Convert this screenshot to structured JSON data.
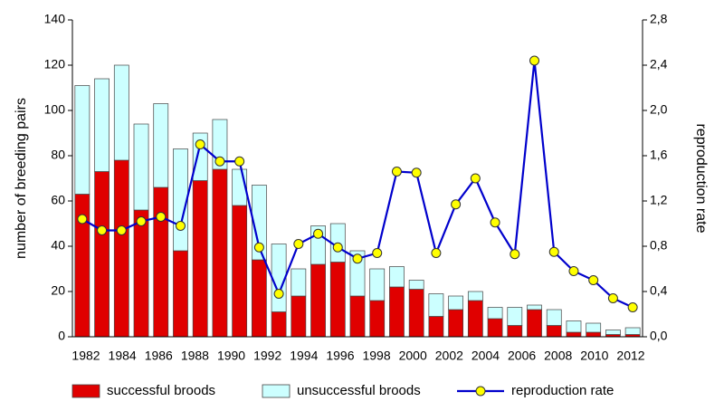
{
  "chart_data": {
    "type": "bar",
    "ylabel": "number of breeding pairs",
    "y2label": "reproduction rate",
    "xlabels": [
      "1982",
      "1984",
      "1986",
      "1988",
      "1990",
      "1992",
      "1994",
      "1996",
      "1998",
      "2000",
      "2002",
      "2004",
      "2006",
      "2008",
      "2010",
      "2012"
    ],
    "ylim": [
      0,
      140
    ],
    "yticks": [
      0,
      20,
      40,
      60,
      80,
      100,
      120,
      140
    ],
    "y2lim": [
      0,
      2.8
    ],
    "y2ticks": [
      {
        "value": 0,
        "label": "0,0"
      },
      {
        "value": 0.4,
        "label": "0,4"
      },
      {
        "value": 0.8,
        "label": "0,8"
      },
      {
        "value": 1.2,
        "label": "1,2"
      },
      {
        "value": 1.6,
        "label": "1,6"
      },
      {
        "value": 2.0,
        "label": "2,0"
      },
      {
        "value": 2.4,
        "label": "2,4"
      },
      {
        "value": 2.8,
        "label": "2,8"
      }
    ],
    "series": [
      {
        "name": "successful broods",
        "type": "bar",
        "color": "#e00000",
        "values": [
          63,
          73,
          78,
          56,
          66,
          38,
          69,
          74,
          58,
          34,
          11,
          18,
          32,
          33,
          18,
          16,
          22,
          21,
          9,
          12,
          16,
          8,
          5,
          12,
          5,
          2,
          2,
          1,
          1
        ]
      },
      {
        "name": "unsuccessful broods",
        "type": "bar",
        "color": "#ccffff",
        "values": [
          48,
          41,
          42,
          38,
          37,
          45,
          21,
          22,
          16,
          33,
          30,
          12,
          17,
          17,
          20,
          14,
          9,
          4,
          10,
          6,
          4,
          5,
          8,
          2,
          7,
          5,
          4,
          2,
          3
        ]
      },
      {
        "name": "reproduction rate",
        "type": "line",
        "axis": "y2",
        "color": "#0000cc",
        "marker_color": "#ffff00",
        "values": [
          1.04,
          0.94,
          0.94,
          1.02,
          1.06,
          0.98,
          1.7,
          1.55,
          1.55,
          0.79,
          0.38,
          0.82,
          0.91,
          0.79,
          0.69,
          0.74,
          1.46,
          1.45,
          0.74,
          1.17,
          1.4,
          1.01,
          0.73,
          2.44,
          0.75,
          0.58,
          0.5,
          0.34,
          0.26
        ]
      }
    ]
  }
}
